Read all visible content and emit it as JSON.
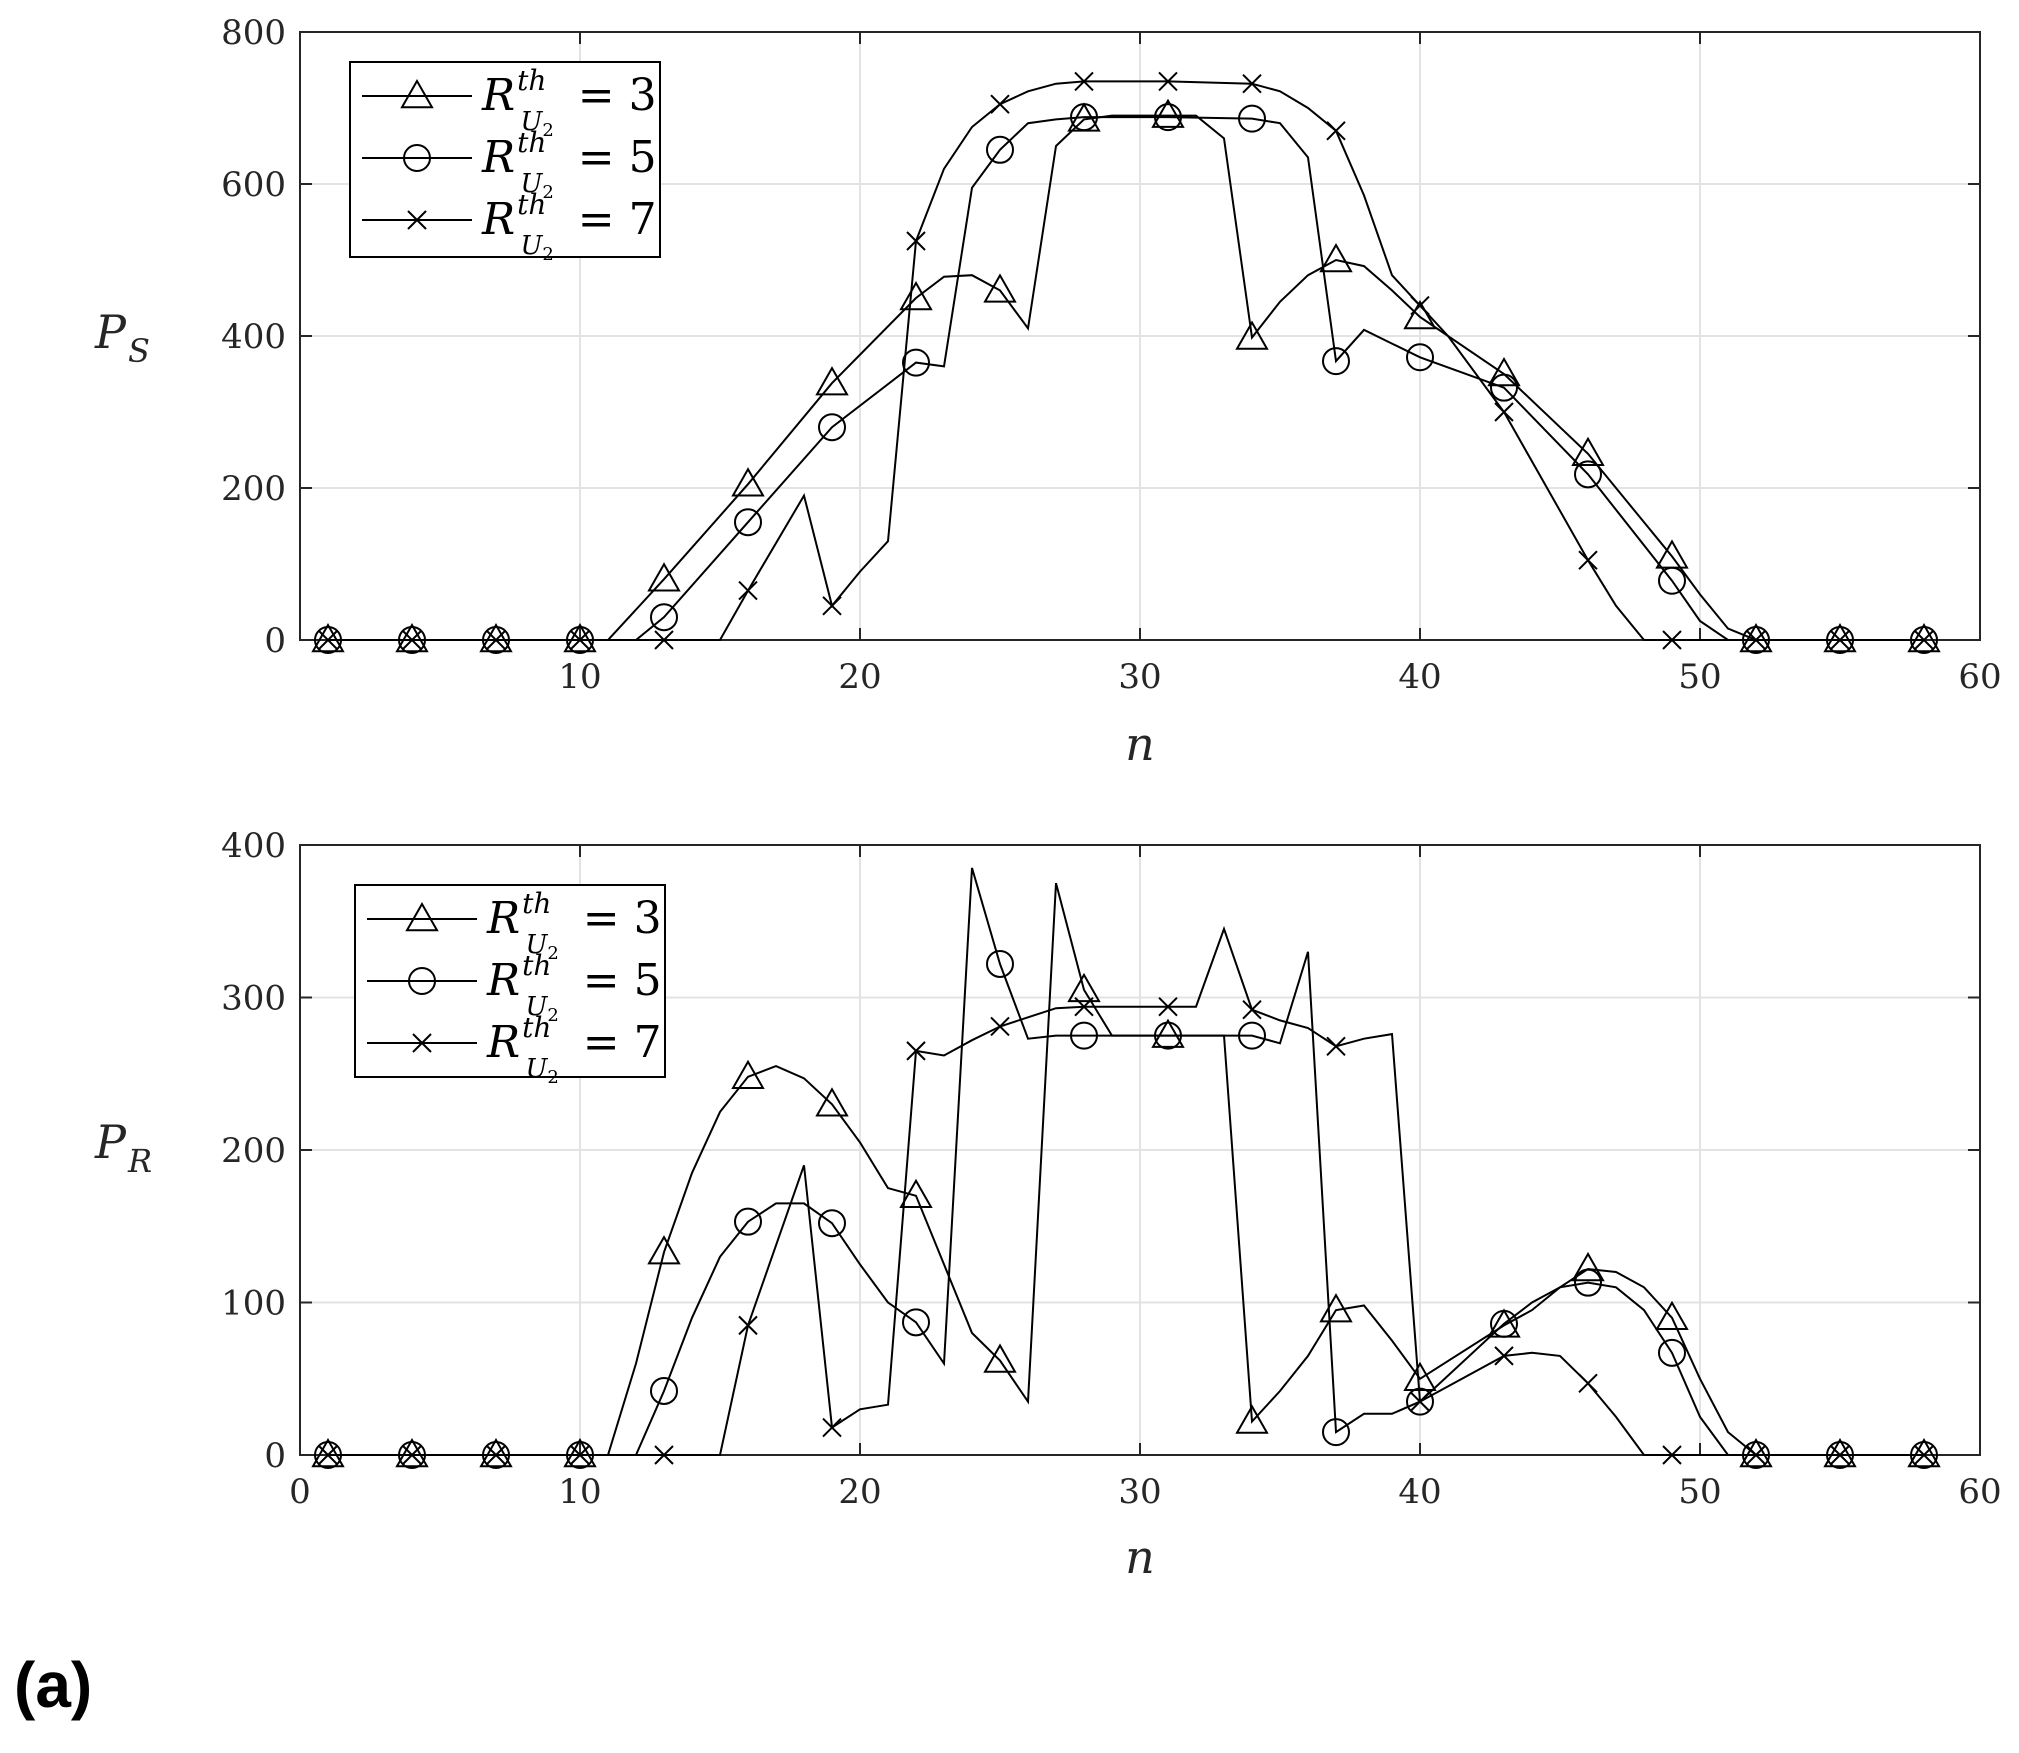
{
  "figure_label": "(a)",
  "chart_data": [
    {
      "type": "line",
      "xlabel": "n",
      "ylabel_main": "P",
      "ylabel_sub": "S",
      "xlim": [
        0,
        60
      ],
      "ylim": [
        0,
        800
      ],
      "xticks": [
        10,
        20,
        30,
        40,
        50,
        60
      ],
      "yticks": [
        0,
        200,
        400,
        600,
        800
      ],
      "grid": true,
      "legend_position": "top-left",
      "marker_x": [
        1,
        4,
        7,
        10,
        13,
        16,
        19,
        22,
        25,
        28,
        31,
        34,
        37,
        40,
        43,
        46,
        49,
        52,
        55,
        58
      ],
      "series": [
        {
          "name": "R_{U_2}^{th} = 3",
          "legend": {
            "main": "R",
            "sup": "th",
            "sub": "U",
            "subsub": "2",
            "value": " = 3"
          },
          "marker": "triangle",
          "x": [
            1,
            4,
            7,
            10,
            11,
            13,
            16,
            19,
            22,
            23,
            24,
            25,
            26,
            27,
            28,
            29,
            30,
            31,
            32,
            33,
            34,
            35,
            36,
            37,
            38,
            39,
            40,
            43,
            46,
            49,
            50,
            51,
            52,
            55,
            58
          ],
          "y": [
            0,
            0,
            0,
            0,
            0,
            80,
            205,
            338,
            450,
            478,
            480,
            460,
            410,
            650,
            685,
            690,
            690,
            690,
            690,
            660,
            398,
            445,
            480,
            500,
            492,
            460,
            425,
            350,
            245,
            110,
            60,
            15,
            0,
            0,
            0
          ]
        },
        {
          "name": "R_{U_2}^{th} = 5",
          "legend": {
            "main": "R",
            "sup": "th",
            "sub": "U",
            "subsub": "2",
            "value": " = 5"
          },
          "marker": "circle",
          "x": [
            1,
            4,
            7,
            10,
            11,
            12,
            13,
            16,
            19,
            22,
            23,
            24,
            25,
            26,
            27,
            28,
            31,
            34,
            35,
            36,
            37,
            38,
            39,
            40,
            43,
            46,
            49,
            50,
            51,
            52,
            55,
            58
          ],
          "y": [
            0,
            0,
            0,
            0,
            0,
            0,
            30,
            155,
            280,
            365,
            360,
            595,
            645,
            680,
            685,
            688,
            688,
            686,
            680,
            635,
            367,
            408,
            390,
            372,
            332,
            218,
            78,
            25,
            0,
            0,
            0,
            0
          ]
        },
        {
          "name": "R_{U_2}^{th} = 7",
          "legend": {
            "main": "R",
            "sup": "th",
            "sub": "U",
            "subsub": "2",
            "value": " = 7"
          },
          "marker": "x",
          "x": [
            1,
            4,
            7,
            10,
            13,
            15,
            16,
            18,
            19,
            20,
            21,
            22,
            23,
            24,
            25,
            26,
            27,
            28,
            31,
            34,
            35,
            36,
            37,
            38,
            39,
            40,
            41,
            43,
            46,
            47,
            48,
            49,
            52,
            55,
            58
          ],
          "y": [
            0,
            0,
            0,
            0,
            0,
            0,
            65,
            190,
            45,
            90,
            130,
            525,
            620,
            675,
            705,
            722,
            732,
            735,
            735,
            732,
            722,
            700,
            670,
            585,
            480,
            440,
            400,
            300,
            105,
            45,
            0,
            0,
            0,
            0,
            0
          ]
        }
      ]
    },
    {
      "type": "line",
      "xlabel": "n",
      "ylabel_main": "P",
      "ylabel_sub": "R",
      "xlim": [
        0,
        60
      ],
      "ylim": [
        0,
        400
      ],
      "xticks": [
        0,
        10,
        20,
        30,
        40,
        50,
        60
      ],
      "yticks": [
        0,
        100,
        200,
        300,
        400
      ],
      "grid": true,
      "legend_position": "top-left",
      "marker_x": [
        1,
        4,
        7,
        10,
        13,
        16,
        19,
        22,
        25,
        28,
        31,
        34,
        37,
        40,
        43,
        46,
        49,
        52,
        55,
        58
      ],
      "series": [
        {
          "name": "R_{U_2}^{th} = 3",
          "legend": {
            "main": "R",
            "sup": "th",
            "sub": "U",
            "subsub": "2",
            "value": " = 3"
          },
          "marker": "triangle",
          "x": [
            1,
            4,
            7,
            10,
            11,
            12,
            13,
            14,
            15,
            16,
            17,
            18,
            19,
            20,
            21,
            22,
            23,
            24,
            25,
            26,
            27,
            28,
            29,
            30,
            31,
            32,
            33,
            34,
            35,
            36,
            37,
            38,
            39,
            40,
            43,
            44,
            45,
            46,
            47,
            48,
            49,
            50,
            51,
            52,
            55,
            58
          ],
          "y": [
            0,
            0,
            0,
            0,
            0,
            60,
            133,
            185,
            225,
            248,
            255,
            247,
            230,
            205,
            175,
            170,
            125,
            80,
            62,
            35,
            375,
            305,
            275,
            275,
            275,
            275,
            275,
            22,
            42,
            65,
            95,
            98,
            75,
            50,
            85,
            95,
            110,
            122,
            120,
            110,
            90,
            50,
            15,
            0,
            0,
            0
          ]
        },
        {
          "name": "R_{U_2}^{th} = 5",
          "legend": {
            "main": "R",
            "sup": "th",
            "sub": "U",
            "subsub": "2",
            "value": " = 5"
          },
          "marker": "circle",
          "x": [
            1,
            4,
            7,
            10,
            11,
            12,
            13,
            14,
            15,
            16,
            17,
            18,
            19,
            20,
            21,
            22,
            23,
            24,
            25,
            26,
            27,
            28,
            31,
            32,
            33,
            34,
            35,
            36,
            37,
            38,
            39,
            40,
            43,
            44,
            45,
            46,
            47,
            48,
            49,
            50,
            51,
            52,
            55,
            58
          ],
          "y": [
            0,
            0,
            0,
            0,
            0,
            0,
            42,
            90,
            130,
            153,
            165,
            165,
            152,
            125,
            100,
            87,
            60,
            385,
            322,
            273,
            275,
            275,
            275,
            275,
            275,
            275,
            270,
            330,
            15,
            27,
            27,
            35,
            86,
            100,
            110,
            113,
            110,
            95,
            67,
            25,
            0,
            0,
            0,
            0
          ]
        },
        {
          "name": "R_{U_2}^{th} = 7",
          "legend": {
            "main": "R",
            "sup": "th",
            "sub": "U",
            "subsub": "2",
            "value": " = 7"
          },
          "marker": "x",
          "x": [
            1,
            4,
            7,
            10,
            13,
            15,
            16,
            18,
            19,
            20,
            21,
            22,
            23,
            24,
            25,
            26,
            27,
            28,
            31,
            32,
            33,
            34,
            35,
            36,
            37,
            38,
            39,
            40,
            41,
            43,
            44,
            45,
            46,
            47,
            48,
            49,
            52,
            55,
            58
          ],
          "y": [
            0,
            0,
            0,
            0,
            0,
            0,
            85,
            190,
            18,
            30,
            33,
            265,
            262,
            272,
            281,
            287,
            293,
            294,
            294,
            294,
            345,
            292,
            285,
            280,
            268,
            273,
            276,
            35,
            45,
            65,
            67,
            65,
            47,
            25,
            0,
            0,
            0,
            0,
            0
          ]
        }
      ]
    }
  ]
}
